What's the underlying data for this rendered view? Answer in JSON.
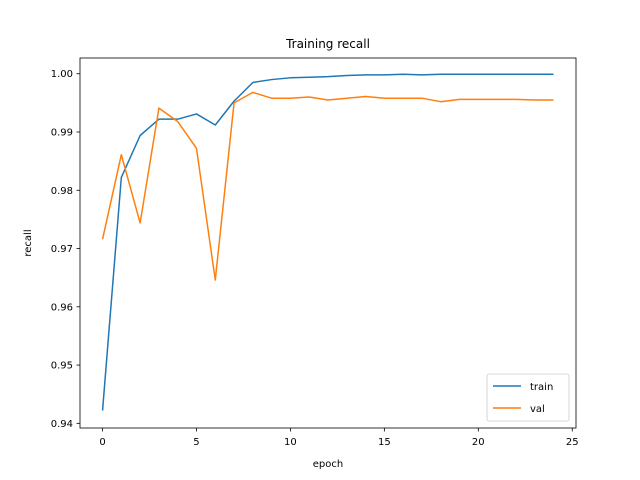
{
  "chart_data": {
    "type": "line",
    "title": "Training recall",
    "xlabel": "epoch",
    "ylabel": "recall",
    "xlim": [
      -1.2,
      25.2
    ],
    "ylim": [
      0.9392,
      1.0027
    ],
    "xticks": [
      0,
      5,
      10,
      15,
      20,
      25
    ],
    "yticks": [
      0.94,
      0.95,
      0.96,
      0.97,
      0.98,
      0.99,
      1.0
    ],
    "ytick_labels": [
      "0.94",
      "0.95",
      "0.96",
      "0.97",
      "0.98",
      "0.99",
      "1.00"
    ],
    "grid": false,
    "legend_position": "lower-right",
    "x": [
      0,
      1,
      2,
      3,
      4,
      5,
      6,
      7,
      8,
      9,
      10,
      11,
      12,
      13,
      14,
      15,
      16,
      17,
      18,
      19,
      20,
      21,
      22,
      23,
      24
    ],
    "series": [
      {
        "name": "train",
        "color": "#1f77b4",
        "values": [
          0.9422,
          0.9822,
          0.9894,
          0.9922,
          0.9922,
          0.9931,
          0.9912,
          0.9953,
          0.9985,
          0.999,
          0.9993,
          0.9994,
          0.9995,
          0.9997,
          0.9998,
          0.9998,
          0.9999,
          0.9998,
          0.9999,
          0.9999,
          0.9999,
          0.9999,
          0.9999,
          0.9999,
          0.9999
        ]
      },
      {
        "name": "val",
        "color": "#ff7f0e",
        "values": [
          0.9716,
          0.9861,
          0.9744,
          0.9941,
          0.9918,
          0.9872,
          0.9646,
          0.995,
          0.9968,
          0.9958,
          0.9958,
          0.996,
          0.9955,
          0.9958,
          0.9961,
          0.9958,
          0.9958,
          0.9958,
          0.9952,
          0.9956,
          0.9956,
          0.9956,
          0.9956,
          0.9955,
          0.9955
        ]
      }
    ]
  }
}
